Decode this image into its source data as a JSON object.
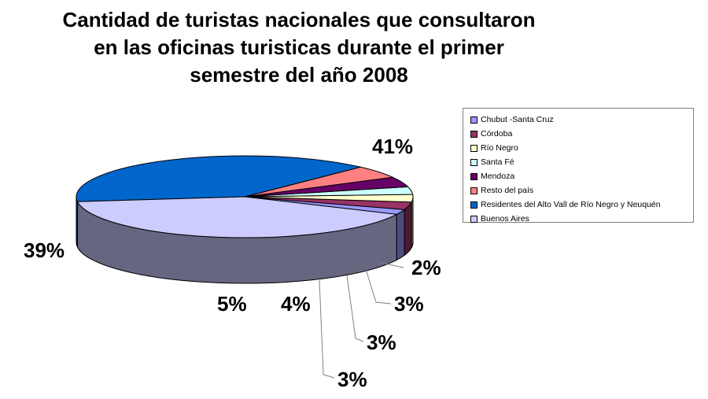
{
  "title": {
    "line1": "Cantidad de turistas nacionales que consultaron",
    "line2": "en las oficinas turisticas durante el primer",
    "line3": "semestre del año 2008"
  },
  "chart_data": {
    "type": "pie",
    "three_d": true,
    "title": "Cantidad de turistas nacionales que consultaron en las oficinas turisticas durante el primer semestre del año 2008",
    "legend_position": "right",
    "slices": [
      {
        "label": "Chubut -Santa Cruz",
        "value": 2,
        "value_label": "2%",
        "color": "#9999ff",
        "side_color": "#4d4d80"
      },
      {
        "label": "Córdoba",
        "value": 3,
        "value_label": "3%",
        "color": "#993366",
        "side_color": "#4d1a33"
      },
      {
        "label": "Río Negro",
        "value": 3,
        "value_label": "3%",
        "color": "#ffffcc",
        "side_color": "#808066"
      },
      {
        "label": "Santa Fé",
        "value": 3,
        "value_label": "3%",
        "color": "#ccffff",
        "side_color": "#668080"
      },
      {
        "label": "Mendoza",
        "value": 4,
        "value_label": "4%",
        "color": "#660066",
        "side_color": "#330033"
      },
      {
        "label": "Resto del país",
        "value": 5,
        "value_label": "5%",
        "color": "#ff8080",
        "side_color": "#804040"
      },
      {
        "label": "Residentes del Alto Vall de Río Negro y Neuquén",
        "value": 39,
        "value_label": "39%",
        "color": "#0066cc",
        "side_color": "#003366"
      },
      {
        "label": "Buenos Aires",
        "value": 41,
        "value_label": "41%",
        "color": "#ccccff",
        "side_color": "#666680"
      }
    ]
  }
}
